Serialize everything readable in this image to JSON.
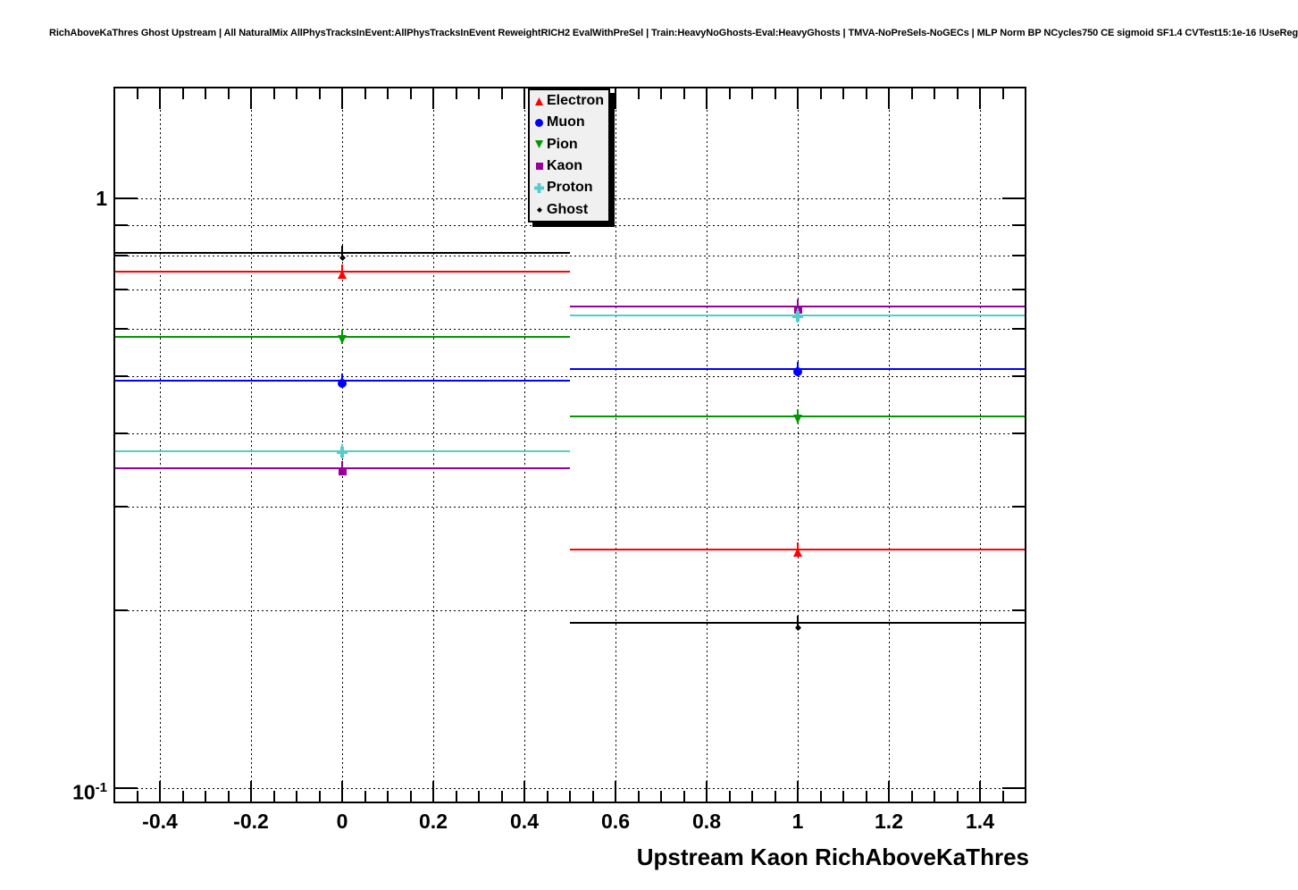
{
  "title": "RichAboveKaThres Ghost Upstream | All NaturalMix AllPhysTracksInEvent:AllPhysTracksInEvent ReweightRICH2 EvalWithPreSel | Train:HeavyNoGhosts-Eval:HeavyGhosts | TMVA-NoPreSels-NoGECs | MLP Norm BP NCycles750 CE sigmoid SF1.4 CVTest15:1e-16 !UseReg",
  "chart_data": {
    "type": "scatter",
    "title": "",
    "x_axis": {
      "label": "Upstream Kaon RichAboveKaThres",
      "min": -0.5,
      "max": 1.5,
      "major_ticks": [
        -0.4,
        -0.2,
        0,
        0.2,
        0.4,
        0.6,
        0.8,
        1,
        1.2,
        1.4
      ],
      "major_tick_labels": [
        "-0.4",
        "-0.2",
        "0",
        "0.2",
        "0.4",
        "0.6",
        "0.8",
        "1",
        "1.2",
        "1.4"
      ],
      "minor_tick_step": 0.05
    },
    "y_axis": {
      "scale": "log",
      "min": 0.0946,
      "max": 1.54,
      "major_ticks": [
        1,
        0.1
      ],
      "major_tick_labels": [
        "1",
        "10^-1"
      ],
      "minor_ticks": [
        0.9,
        0.8,
        0.7,
        0.6,
        0.5,
        0.4,
        0.3,
        0.2
      ]
    },
    "grid": true,
    "bins": {
      "centers": [
        0,
        1
      ],
      "half_width": 0.5
    },
    "series": [
      {
        "name": "Electron",
        "color": "#ff0000",
        "marker": "triangle-up",
        "size": 10,
        "values": [
          0.752,
          0.254
        ]
      },
      {
        "name": "Muon",
        "color": "#0000ff",
        "marker": "circle",
        "size": 10,
        "values": [
          0.491,
          0.514
        ]
      },
      {
        "name": "Pion",
        "color": "#009900",
        "marker": "triangle-down",
        "size": 10,
        "values": [
          0.582,
          0.427
        ]
      },
      {
        "name": "Kaon",
        "color": "#990099",
        "marker": "square",
        "size": 9,
        "values": [
          0.349,
          0.656
        ]
      },
      {
        "name": "Proton",
        "color": "#55cccc",
        "marker": "cross",
        "size": 12,
        "values": [
          0.373,
          0.633
        ]
      },
      {
        "name": "Ghost",
        "color": "#000000",
        "marker": "diamond",
        "size": 7,
        "values": [
          0.808,
          0.191
        ]
      }
    ],
    "legend": {
      "position": "top-center",
      "entries": [
        "Electron",
        "Muon",
        "Pion",
        "Kaon",
        "Proton",
        "Ghost"
      ]
    }
  }
}
